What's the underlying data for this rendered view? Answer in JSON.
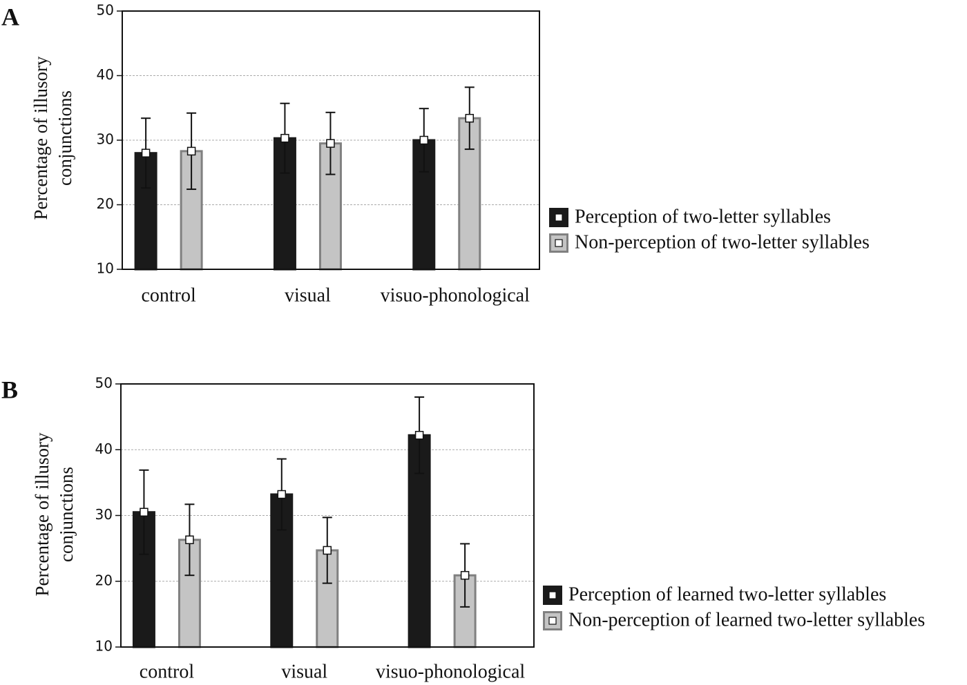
{
  "chart_data": [
    {
      "type": "bar",
      "panel": "A",
      "ylabel": [
        "Percentage of illusory",
        "conjunctions"
      ],
      "categories": [
        "control",
        "visual",
        "visuo-phonological"
      ],
      "series": [
        {
          "name": "Perception of two-letter syllables",
          "color": "#1a1a1a",
          "edge": "#1a1a1a",
          "values": [
            28.0,
            30.3,
            30.0
          ],
          "errors": [
            5.4,
            5.4,
            4.9
          ]
        },
        {
          "name": "Non-perception of two-letter syllables",
          "color": "#c4c4c4",
          "edge": "#808080",
          "values": [
            28.3,
            29.5,
            33.4
          ],
          "errors": [
            5.9,
            4.8,
            4.8
          ]
        }
      ],
      "ylim": [
        10,
        50
      ],
      "yticks": [
        10,
        20,
        30,
        40,
        50
      ],
      "grid": true,
      "legend": "right"
    },
    {
      "type": "bar",
      "panel": "B",
      "ylabel": [
        "Percentage of illusory",
        "conjunctions"
      ],
      "categories": [
        "control",
        "visual",
        "visuo-phonological"
      ],
      "series": [
        {
          "name": "Perception of learned two-letter syllables",
          "color": "#1a1a1a",
          "edge": "#1a1a1a",
          "values": [
            30.5,
            33.2,
            42.2
          ],
          "errors": [
            6.4,
            5.4,
            5.8
          ]
        },
        {
          "name": "Non-perception of learned two-letter syllables",
          "color": "#c4c4c4",
          "edge": "#808080",
          "values": [
            26.3,
            24.7,
            20.9
          ],
          "errors": [
            5.4,
            5.0,
            4.8
          ]
        }
      ],
      "ylim": [
        10,
        50
      ],
      "yticks": [
        10,
        20,
        30,
        40,
        50
      ],
      "grid": true,
      "legend": "right"
    }
  ]
}
